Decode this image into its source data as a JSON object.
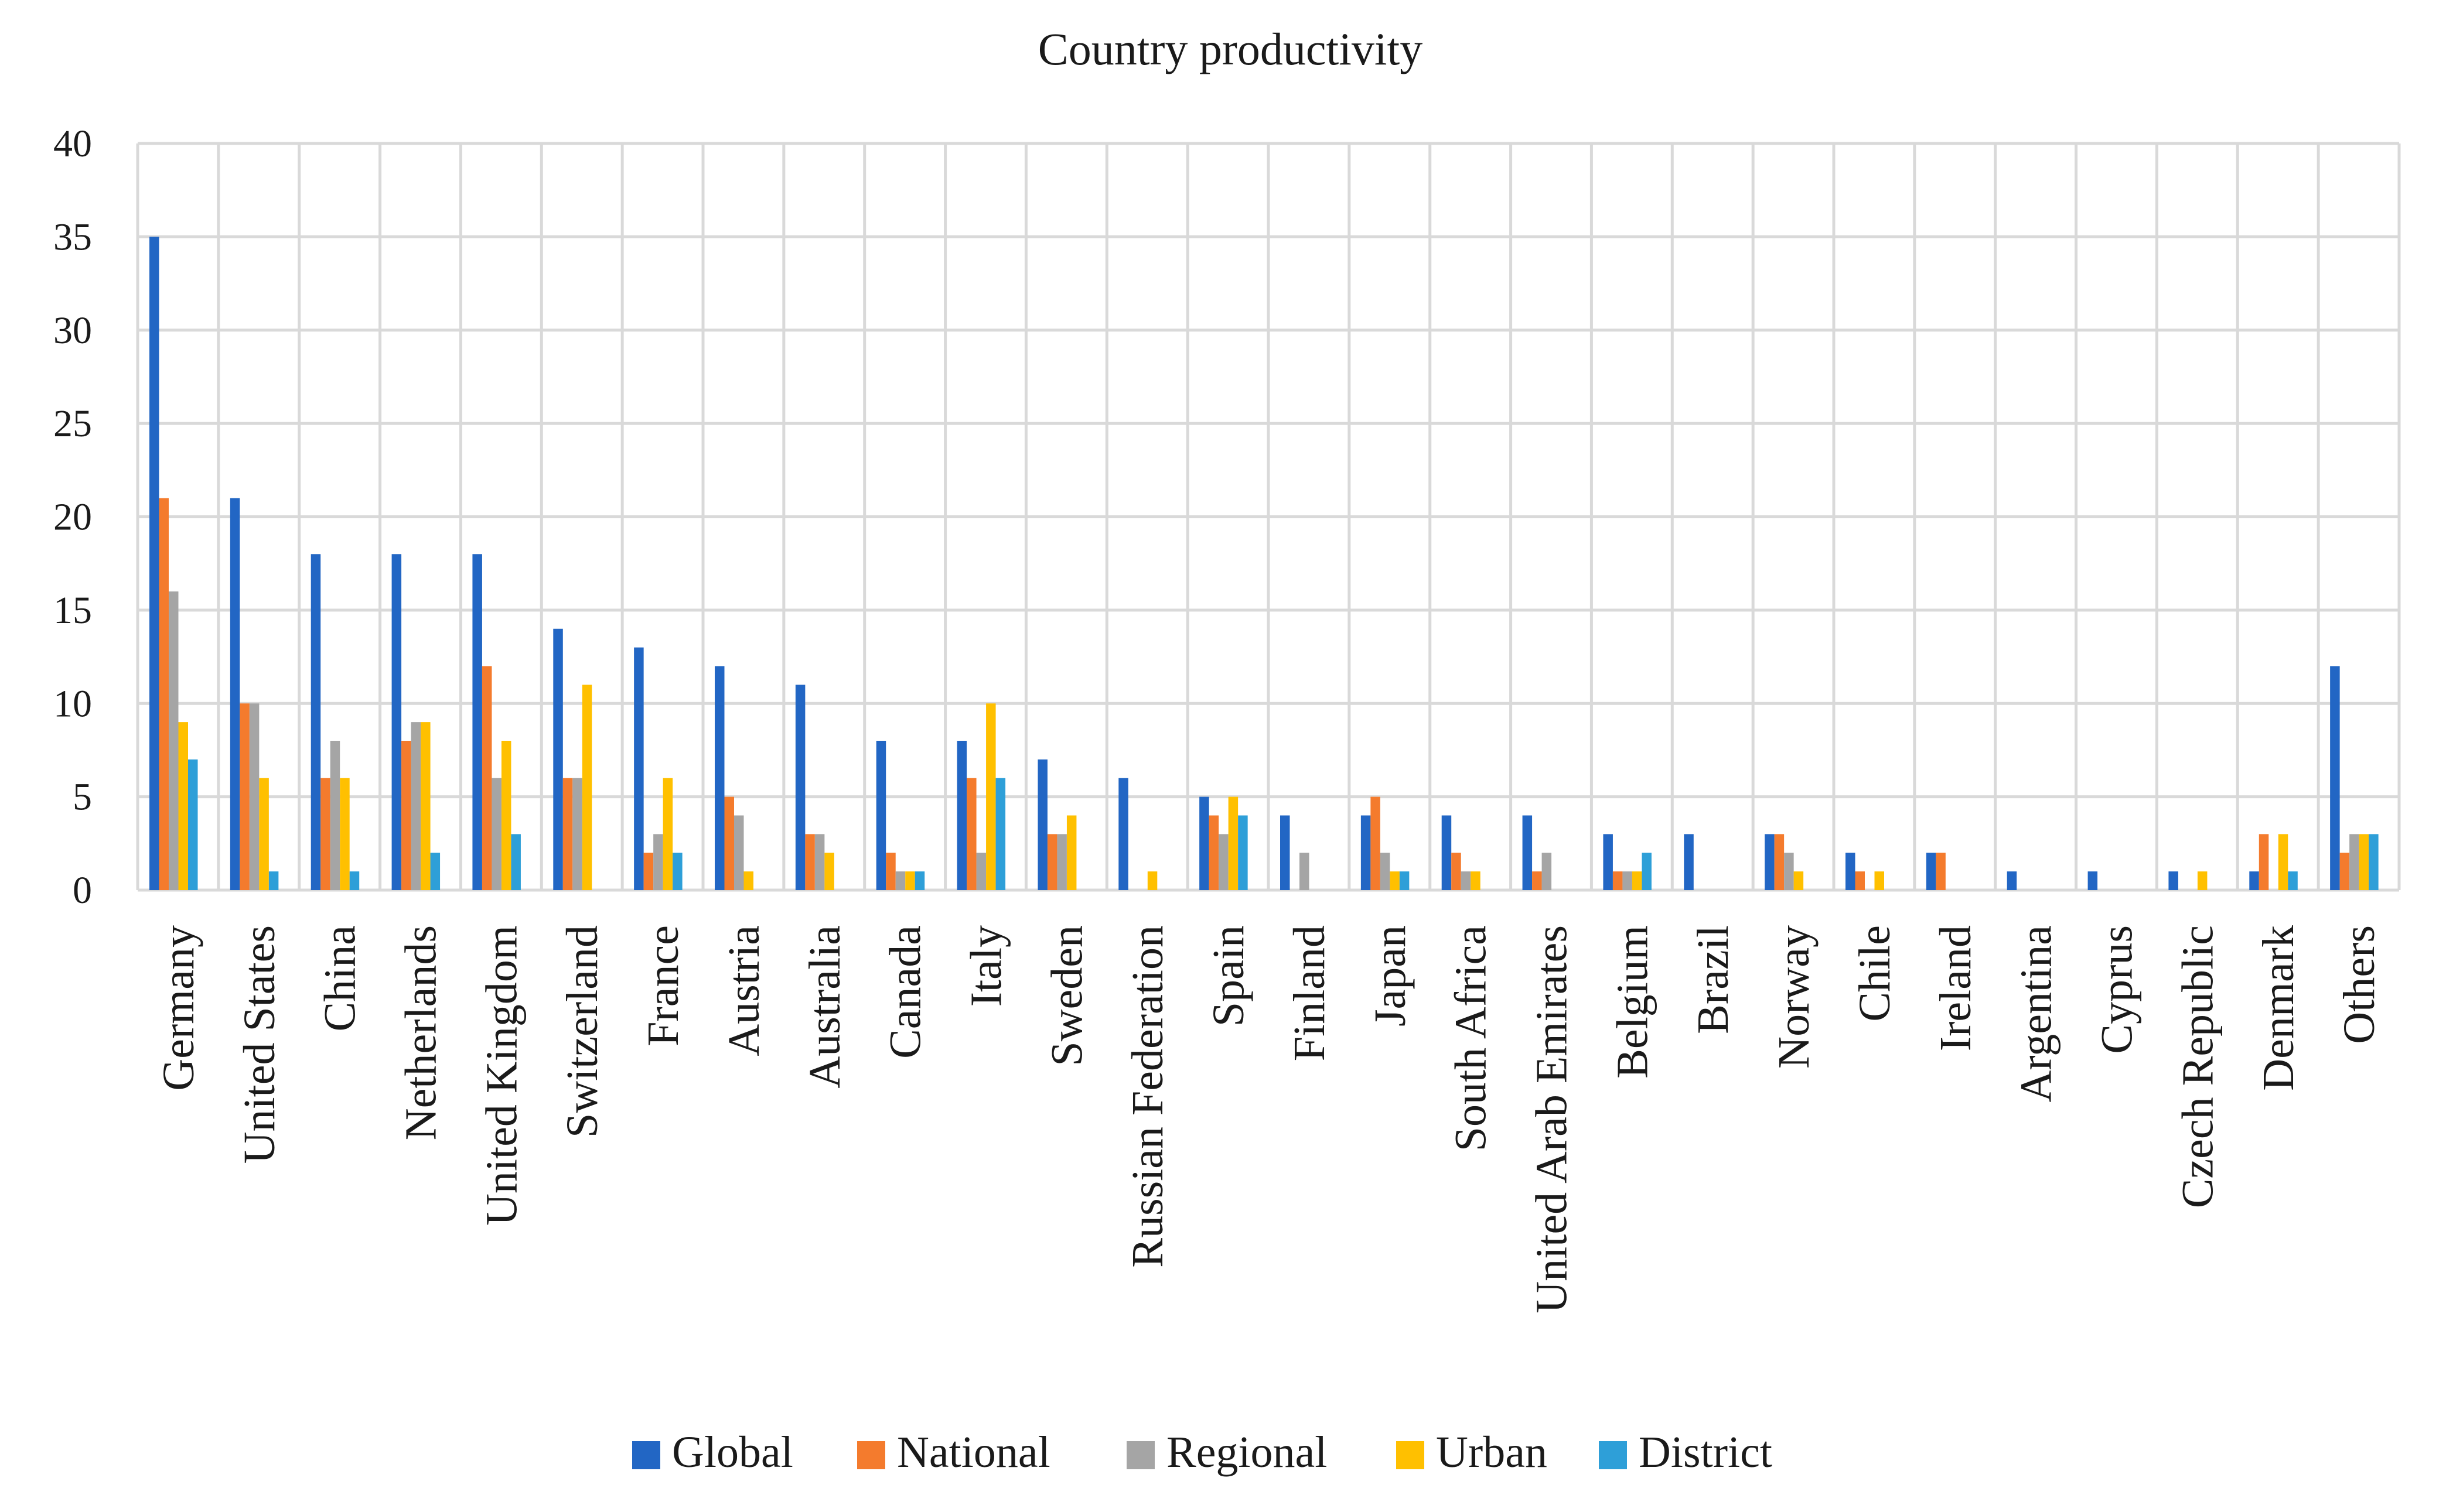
{
  "chart_data": {
    "type": "bar",
    "title": "Country productivity",
    "xlabel": "",
    "ylabel": "",
    "ylim": [
      0,
      40
    ],
    "yticks": [
      "0",
      "5",
      "10",
      "15",
      "20",
      "25",
      "30",
      "35",
      "40"
    ],
    "grid": true,
    "legend_position": "bottom",
    "categories": [
      "Germany",
      "United States",
      "China",
      "Netherlands",
      "United Kingdom",
      "Switzerland",
      "France",
      "Austria",
      "Australia",
      "Canada",
      "Italy",
      "Sweden",
      "Russian Federation",
      "Spain",
      "Finland",
      "Japan",
      "South Africa",
      "United Arab Emirates",
      "Belgium",
      "Brazil",
      "Norway",
      "Chile",
      "Ireland",
      "Argentina",
      "Cyprus",
      "Czech Republic",
      "Denmark",
      "Others"
    ],
    "series": [
      {
        "name": "Global",
        "color": "#2266c4",
        "values": [
          35,
          21,
          18,
          18,
          18,
          14,
          13,
          12,
          11,
          8,
          8,
          7,
          6,
          5,
          4,
          4,
          4,
          4,
          3,
          3,
          3,
          2,
          2,
          1,
          1,
          1,
          1,
          12
        ]
      },
      {
        "name": "National",
        "color": "#f47b2d",
        "values": [
          21,
          10,
          6,
          8,
          12,
          6,
          2,
          5,
          3,
          2,
          6,
          3,
          0,
          4,
          0,
          5,
          2,
          1,
          1,
          0,
          3,
          1,
          2,
          0,
          0,
          0,
          3,
          2
        ]
      },
      {
        "name": "Regional",
        "color": "#a5a5a5",
        "values": [
          16,
          10,
          8,
          9,
          6,
          6,
          3,
          4,
          3,
          1,
          2,
          3,
          0,
          3,
          2,
          2,
          1,
          2,
          1,
          0,
          2,
          0,
          0,
          0,
          0,
          0,
          0,
          3
        ]
      },
      {
        "name": "Urban",
        "color": "#ffc000",
        "values": [
          9,
          6,
          6,
          9,
          8,
          11,
          6,
          1,
          2,
          1,
          10,
          4,
          1,
          5,
          0,
          1,
          1,
          0,
          1,
          0,
          1,
          1,
          0,
          0,
          0,
          1,
          3,
          3
        ]
      },
      {
        "name": "District",
        "color": "#2e9fd8",
        "values": [
          7,
          1,
          1,
          2,
          3,
          0,
          2,
          0,
          0,
          1,
          6,
          0,
          0,
          4,
          0,
          1,
          0,
          0,
          2,
          0,
          0,
          0,
          0,
          0,
          0,
          0,
          1,
          3
        ]
      }
    ]
  }
}
